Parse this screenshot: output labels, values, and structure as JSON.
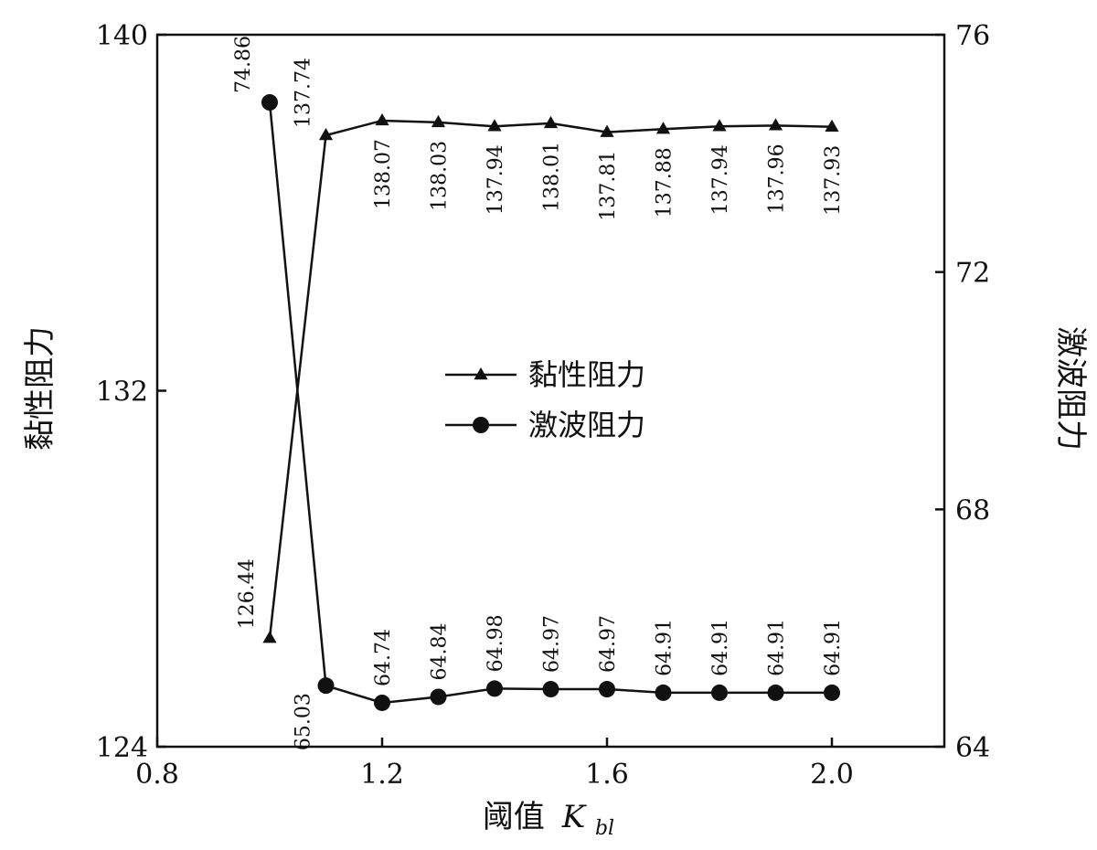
{
  "chart_data": {
    "type": "line",
    "xlabel": "阈值",
    "xlabel_symbol": "K",
    "xlabel_sub": "bl",
    "ylabel_left": "黏性阻力",
    "ylabel_right": "激波阻力",
    "xlim": [
      0.8,
      2.2
    ],
    "ylim_left": [
      124,
      140
    ],
    "ylim_right": [
      64,
      76
    ],
    "x_ticks": [
      {
        "value": 0.8,
        "label": "0.8"
      },
      {
        "value": 1.2,
        "label": "1.2"
      },
      {
        "value": 1.6,
        "label": "1.6"
      },
      {
        "value": 2.0,
        "label": "2.0"
      }
    ],
    "y_ticks_left": [
      {
        "value": 124,
        "label": "124"
      },
      {
        "value": 132,
        "label": "132"
      },
      {
        "value": 140,
        "label": "140"
      }
    ],
    "y_ticks_right": [
      {
        "value": 64,
        "label": "64"
      },
      {
        "value": 68,
        "label": "68"
      },
      {
        "value": 72,
        "label": "72"
      },
      {
        "value": 76,
        "label": "76"
      }
    ],
    "legend_position": "center",
    "grid": false,
    "series": [
      {
        "name": "黏性阻力",
        "axis": "left",
        "marker": "triangle",
        "x": [
          1.0,
          1.1,
          1.2,
          1.3,
          1.4,
          1.5,
          1.6,
          1.7,
          1.8,
          1.9,
          2.0
        ],
        "values": [
          126.44,
          137.74,
          138.07,
          138.03,
          137.94,
          138.01,
          137.81,
          137.88,
          137.94,
          137.96,
          137.93
        ],
        "labels": [
          "126.44",
          "137.74",
          "138.07",
          "138.03",
          "137.94",
          "138.01",
          "137.81",
          "137.88",
          "137.94",
          "137.96",
          "137.93"
        ]
      },
      {
        "name": "激波阻力",
        "axis": "right",
        "marker": "circle",
        "x": [
          1.0,
          1.1,
          1.2,
          1.3,
          1.4,
          1.5,
          1.6,
          1.7,
          1.8,
          1.9,
          2.0
        ],
        "values": [
          74.86,
          65.03,
          64.74,
          64.84,
          64.98,
          64.97,
          64.97,
          64.91,
          64.91,
          64.91,
          64.91
        ],
        "labels": [
          "74.86",
          "65.03",
          "64.74",
          "64.84",
          "64.98",
          "64.97",
          "64.97",
          "64.91",
          "64.91",
          "64.91",
          "64.91"
        ]
      }
    ]
  }
}
